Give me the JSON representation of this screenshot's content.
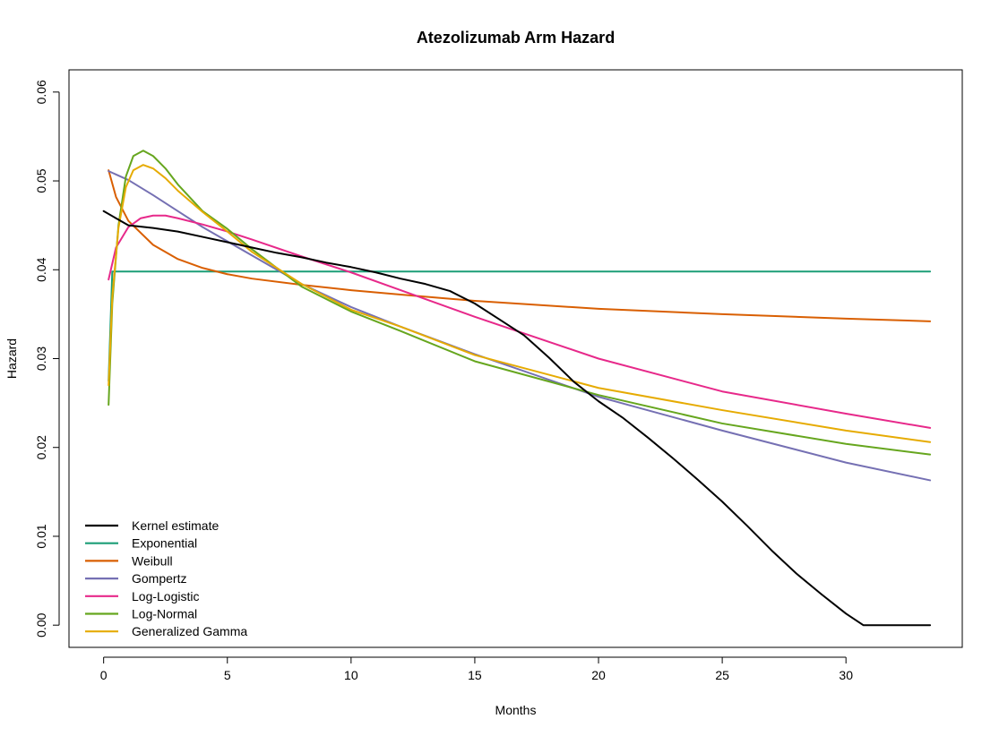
{
  "chart_data": {
    "type": "line",
    "title": "Atezolizumab Arm Hazard",
    "xlabel": "Months",
    "ylabel": "Hazard",
    "xlim": [
      -1.4,
      34.7
    ],
    "ylim": [
      -0.0025,
      0.0625
    ],
    "x_ticks": [
      0,
      5,
      10,
      15,
      20,
      25,
      30
    ],
    "x_tick_labels": [
      "0",
      "5",
      "10",
      "15",
      "20",
      "25",
      "30"
    ],
    "y_ticks": [
      0.0,
      0.01,
      0.02,
      0.03,
      0.04,
      0.05,
      0.06
    ],
    "y_tick_labels": [
      "0.00",
      "0.01",
      "0.02",
      "0.03",
      "0.04",
      "0.05",
      "0.06"
    ],
    "grid": false,
    "legend_position": "bottom-left",
    "series": [
      {
        "name": "Kernel estimate",
        "color": "#000000",
        "x": [
          0.0,
          0.5,
          1.0,
          2.0,
          3.0,
          4.0,
          5.0,
          6.0,
          7.0,
          8.0,
          9.0,
          10.0,
          11.0,
          12.0,
          13.0,
          14.0,
          15.0,
          16.0,
          17.0,
          18.0,
          19.0,
          20.0,
          21.0,
          22.0,
          23.0,
          24.0,
          25.0,
          26.0,
          27.0,
          28.0,
          29.0,
          30.0,
          30.7,
          31.5,
          33.4
        ],
        "y": [
          0.0466,
          0.0458,
          0.045,
          0.0447,
          0.0443,
          0.0437,
          0.0431,
          0.0425,
          0.0419,
          0.0414,
          0.0408,
          0.0403,
          0.0397,
          0.039,
          0.0384,
          0.0376,
          0.0362,
          0.0344,
          0.0326,
          0.0301,
          0.0274,
          0.0252,
          0.0233,
          0.0211,
          0.0188,
          0.0164,
          0.0139,
          0.0112,
          0.0084,
          0.0058,
          0.0035,
          0.0013,
          0.0,
          0.0,
          0.0
        ]
      },
      {
        "name": "Exponential",
        "color": "#1b9e77",
        "x": [
          0.2,
          0.35,
          33.4
        ],
        "y": [
          0.0275,
          0.0398,
          0.0398
        ]
      },
      {
        "name": "Weibull",
        "color": "#d95f02",
        "x": [
          0.2,
          0.5,
          1.0,
          2.0,
          3.0,
          4.0,
          5.0,
          6.0,
          8.0,
          10.0,
          12.0,
          15.0,
          20.0,
          25.0,
          30.0,
          33.4
        ],
        "y": [
          0.0512,
          0.0482,
          0.0455,
          0.0428,
          0.0412,
          0.0402,
          0.0395,
          0.039,
          0.0383,
          0.0377,
          0.0372,
          0.0365,
          0.0356,
          0.035,
          0.0345,
          0.0342
        ]
      },
      {
        "name": "Gompertz",
        "color": "#7570b3",
        "x": [
          0.2,
          1.0,
          2.0,
          3.0,
          4.0,
          5.0,
          6.0,
          8.0,
          10.0,
          12.0,
          15.0,
          20.0,
          25.0,
          30.0,
          33.4
        ],
        "y": [
          0.0511,
          0.0501,
          0.0484,
          0.0466,
          0.0448,
          0.0432,
          0.0416,
          0.0384,
          0.0358,
          0.0336,
          0.0305,
          0.0257,
          0.0219,
          0.0183,
          0.0163
        ]
      },
      {
        "name": "Log-Logistic",
        "color": "#e7298a",
        "x": [
          0.2,
          0.5,
          1.0,
          1.5,
          2.0,
          2.5,
          3.0,
          4.0,
          5.0,
          6.0,
          8.0,
          10.0,
          12.0,
          15.0,
          20.0,
          25.0,
          30.0,
          33.4
        ],
        "y": [
          0.0389,
          0.0425,
          0.0448,
          0.0458,
          0.0461,
          0.0461,
          0.0458,
          0.0451,
          0.0443,
          0.0434,
          0.0415,
          0.0397,
          0.0377,
          0.0347,
          0.03,
          0.0263,
          0.0238,
          0.0222
        ]
      },
      {
        "name": "Log-Normal",
        "color": "#66a61e",
        "x": [
          0.2,
          0.35,
          0.6,
          0.9,
          1.2,
          1.6,
          2.0,
          2.5,
          3.0,
          4.0,
          5.0,
          6.0,
          8.0,
          10.0,
          12.0,
          15.0,
          20.0,
          25.0,
          30.0,
          33.4
        ],
        "y": [
          0.0248,
          0.0362,
          0.045,
          0.0505,
          0.0528,
          0.0534,
          0.0528,
          0.0514,
          0.0496,
          0.0466,
          0.0446,
          0.0423,
          0.0381,
          0.0353,
          0.0331,
          0.0297,
          0.0259,
          0.0227,
          0.0204,
          0.0192
        ]
      },
      {
        "name": "Generalized Gamma",
        "color": "#e6ab02",
        "x": [
          0.2,
          0.35,
          0.6,
          0.9,
          1.2,
          1.6,
          2.0,
          2.5,
          3.0,
          4.0,
          5.0,
          6.0,
          8.0,
          10.0,
          12.0,
          15.0,
          20.0,
          25.0,
          30.0,
          33.4
        ],
        "y": [
          0.027,
          0.037,
          0.0447,
          0.0493,
          0.0512,
          0.0518,
          0.0514,
          0.0503,
          0.0489,
          0.0465,
          0.0443,
          0.042,
          0.0384,
          0.0355,
          0.0336,
          0.0304,
          0.0267,
          0.0242,
          0.0219,
          0.0206
        ]
      }
    ]
  }
}
